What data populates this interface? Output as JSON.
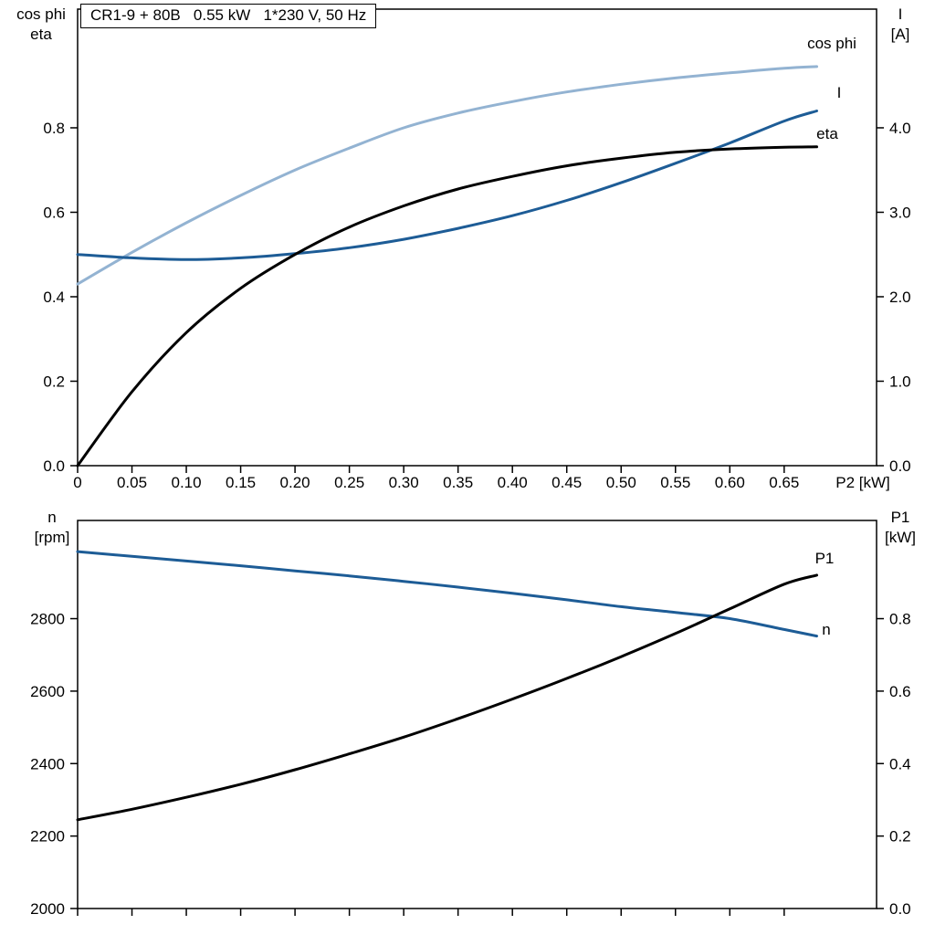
{
  "window": {
    "background": "#ffffff"
  },
  "title_box": {
    "text": "CR1-9 + 80B   0.55 kW   1*230 V, 50 Hz"
  },
  "axis_color": "#000000",
  "chart_data": [
    {
      "type": "line",
      "title": "CR1-9 + 80B   0.55 kW   1*230 V, 50 Hz",
      "xlabel": "P2 [kW]",
      "xlim": [
        0,
        0.735
      ],
      "x_ticks": [
        0,
        0.05,
        0.1,
        0.15,
        0.2,
        0.25,
        0.3,
        0.35,
        0.4,
        0.45,
        0.5,
        0.55,
        0.6,
        0.65
      ],
      "x_tick_labels": [
        "0",
        "0.05",
        "0.10",
        "0.15",
        "0.20",
        "0.25",
        "0.30",
        "0.35",
        "0.40",
        "0.45",
        "0.50",
        "0.55",
        "0.60",
        "0.65"
      ],
      "left_axis": {
        "label_lines": [
          "cos phi",
          "eta"
        ],
        "lim": [
          0,
          1.081
        ],
        "ticks": [
          0,
          0.2,
          0.4,
          0.6,
          0.8
        ],
        "tick_labels": [
          "0.0",
          "0.2",
          "0.4",
          "0.6",
          "0.8"
        ]
      },
      "right_axis": {
        "label_lines": [
          "I",
          "[A]"
        ],
        "lim": [
          0,
          5.405
        ],
        "ticks": [
          0,
          1,
          2,
          3,
          4
        ],
        "tick_labels": [
          "0.0",
          "1.0",
          "2.0",
          "3.0",
          "4.0"
        ]
      },
      "x": [
        0,
        0.05,
        0.1,
        0.15,
        0.2,
        0.25,
        0.3,
        0.35,
        0.4,
        0.45,
        0.5,
        0.55,
        0.6,
        0.65,
        0.68
      ],
      "series": [
        {
          "name": "cos phi",
          "axis": "left",
          "color": "#93b3d2",
          "values": [
            0.43,
            0.505,
            0.575,
            0.64,
            0.7,
            0.752,
            0.8,
            0.835,
            0.862,
            0.885,
            0.903,
            0.918,
            0.93,
            0.941,
            0.945
          ]
        },
        {
          "name": "I",
          "axis": "right",
          "color": "#1d5c96",
          "values": [
            2.5,
            2.46,
            2.44,
            2.46,
            2.51,
            2.58,
            2.68,
            2.81,
            2.96,
            3.14,
            3.35,
            3.58,
            3.82,
            4.08,
            4.2
          ]
        },
        {
          "name": "eta",
          "axis": "left",
          "color": "#000000",
          "values": [
            0,
            0.175,
            0.315,
            0.42,
            0.5,
            0.565,
            0.615,
            0.655,
            0.685,
            0.71,
            0.728,
            0.742,
            0.75,
            0.754,
            0.755
          ]
        }
      ]
    },
    {
      "type": "line",
      "title": "",
      "xlabel": "",
      "xlim": [
        0,
        0.735
      ],
      "x_ticks": [
        0,
        0.05,
        0.1,
        0.15,
        0.2,
        0.25,
        0.3,
        0.35,
        0.4,
        0.45,
        0.5,
        0.55,
        0.6,
        0.65
      ],
      "x_tick_labels": [],
      "left_axis": {
        "label_lines": [
          "n",
          "[rpm]"
        ],
        "lim": [
          2000,
          3071
        ],
        "ticks": [
          2000,
          2200,
          2400,
          2600,
          2800
        ],
        "tick_labels": [
          "2000",
          "2200",
          "2400",
          "2600",
          "2800"
        ]
      },
      "right_axis": {
        "label_lines": [
          "P1",
          "[kW]"
        ],
        "lim": [
          0,
          1.071
        ],
        "ticks": [
          0,
          0.2,
          0.4,
          0.6,
          0.8
        ],
        "tick_labels": [
          "0.0",
          "0.2",
          "0.4",
          "0.6",
          "0.8"
        ]
      },
      "x": [
        0,
        0.05,
        0.1,
        0.15,
        0.2,
        0.25,
        0.3,
        0.35,
        0.4,
        0.45,
        0.5,
        0.55,
        0.6,
        0.65,
        0.68
      ],
      "series": [
        {
          "name": "n",
          "axis": "left",
          "color": "#1d5c96",
          "values": [
            2985,
            2972,
            2959,
            2946,
            2932,
            2918,
            2903,
            2887,
            2870,
            2852,
            2833,
            2817,
            2800,
            2770,
            2752
          ]
        },
        {
          "name": "P1",
          "axis": "right",
          "color": "#000000",
          "values": [
            0.245,
            0.274,
            0.307,
            0.343,
            0.383,
            0.427,
            0.473,
            0.524,
            0.578,
            0.635,
            0.695,
            0.759,
            0.827,
            0.895,
            0.92
          ]
        }
      ]
    }
  ]
}
